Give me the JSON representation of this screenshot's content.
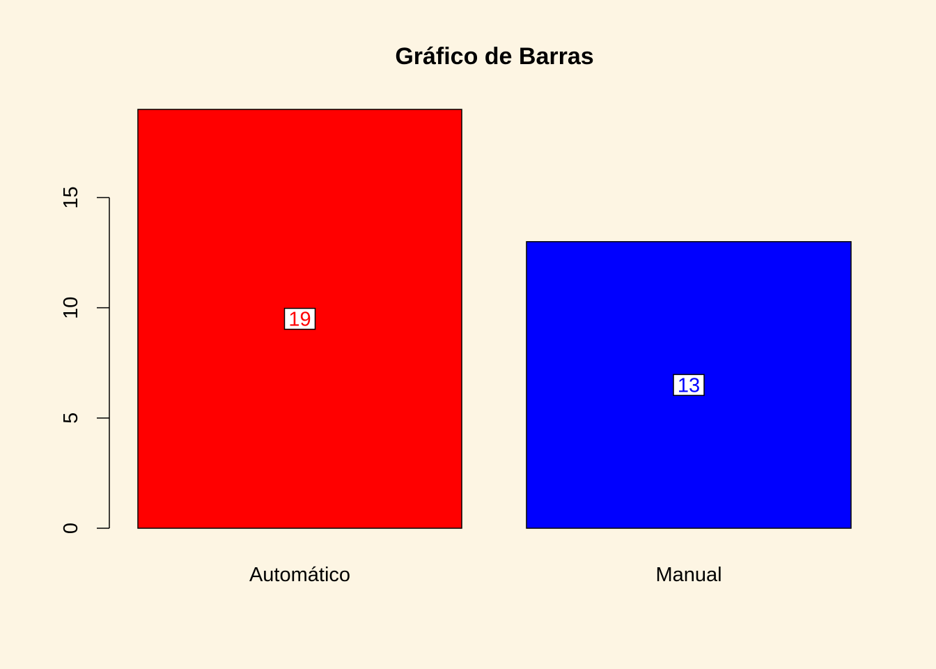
{
  "chart_data": {
    "type": "bar",
    "title": "Gráfico de Barras",
    "xlabel": "",
    "ylabel": "",
    "categories": [
      "Automático",
      "Manual"
    ],
    "values": [
      19,
      13
    ],
    "value_labels": [
      "19",
      "13"
    ],
    "bar_colors": [
      "#FF0000",
      "#0000FF"
    ],
    "ylim": [
      0,
      19
    ],
    "yticks": [
      0,
      5,
      10,
      15
    ],
    "ytick_labels": [
      "0",
      "5",
      "10",
      "15"
    ],
    "grid": false,
    "background_color": "#FDF5E3"
  }
}
